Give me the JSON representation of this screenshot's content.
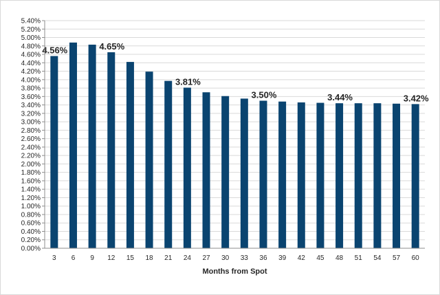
{
  "chart_data": {
    "type": "bar",
    "title": "",
    "xlabel": "Months from Spot",
    "ylabel": "",
    "categories": [
      "3",
      "6",
      "9",
      "12",
      "15",
      "18",
      "21",
      "24",
      "27",
      "30",
      "33",
      "36",
      "39",
      "42",
      "45",
      "48",
      "51",
      "54",
      "57",
      "60"
    ],
    "values": [
      4.56,
      4.88,
      4.83,
      4.65,
      4.42,
      4.19,
      3.97,
      3.81,
      3.7,
      3.61,
      3.55,
      3.5,
      3.48,
      3.46,
      3.45,
      3.44,
      3.44,
      3.44,
      3.43,
      3.42
    ],
    "ylim": [
      0,
      5.4
    ],
    "ytick_step": 0.2,
    "ytick_format": "percent_2dp",
    "grid": true,
    "legend": "none",
    "bar_color": "#0a4470",
    "grid_color": "#d9d9d9",
    "data_labels": [
      {
        "index": 0,
        "text": "4.56%"
      },
      {
        "index": 3,
        "text": "4.65%"
      },
      {
        "index": 7,
        "text": "3.81%"
      },
      {
        "index": 11,
        "text": "3.50%"
      },
      {
        "index": 15,
        "text": "3.44%"
      },
      {
        "index": 19,
        "text": "3.42%"
      }
    ]
  }
}
